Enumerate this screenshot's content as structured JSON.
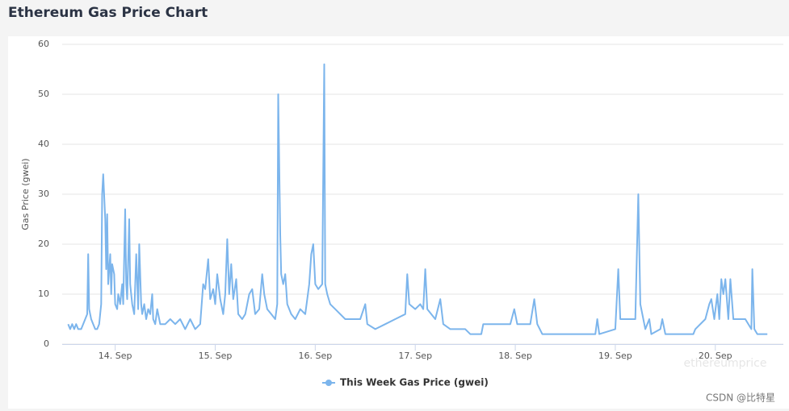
{
  "chart_data": {
    "type": "line",
    "title": "Ethereum Gas Price Chart",
    "y_label": "Gas Price (gwei)",
    "watermarks": [
      "ethereumprice",
      "CSDN @比特星"
    ],
    "x": [
      13.53,
      13.55,
      13.57,
      13.59,
      13.61,
      13.63,
      13.66,
      13.68,
      13.7,
      13.72,
      13.73,
      13.74,
      13.76,
      13.78,
      13.8,
      13.82,
      13.84,
      13.86,
      13.87,
      13.88,
      13.9,
      13.91,
      13.92,
      13.93,
      13.95,
      13.96,
      13.97,
      13.99,
      14.0,
      14.02,
      14.03,
      14.05,
      14.07,
      14.08,
      14.1,
      14.11,
      14.12,
      14.14,
      14.15,
      14.17,
      14.19,
      14.21,
      14.23,
      14.24,
      14.26,
      14.27,
      14.29,
      14.31,
      14.33,
      14.35,
      14.37,
      14.38,
      14.4,
      14.42,
      14.45,
      14.5,
      14.55,
      14.6,
      14.65,
      14.7,
      14.75,
      14.8,
      14.85,
      14.88,
      14.9,
      14.93,
      14.95,
      14.98,
      15.0,
      15.02,
      15.05,
      15.08,
      15.1,
      15.12,
      15.14,
      15.16,
      15.18,
      15.21,
      15.23,
      15.27,
      15.3,
      15.34,
      15.37,
      15.4,
      15.44,
      15.47,
      15.49,
      15.52,
      15.56,
      15.6,
      15.62,
      15.63,
      15.65,
      15.66,
      15.68,
      15.7,
      15.72,
      15.76,
      15.8,
      15.85,
      15.9,
      15.94,
      15.96,
      15.98,
      16.0,
      16.03,
      16.07,
      16.09,
      16.1,
      16.12,
      16.15,
      16.2,
      16.3,
      16.45,
      16.5,
      16.52,
      16.6,
      16.7,
      16.8,
      16.9,
      16.92,
      16.94,
      17.0,
      17.05,
      17.08,
      17.1,
      17.12,
      17.2,
      17.25,
      17.28,
      17.35,
      17.5,
      17.55,
      17.66,
      17.68,
      17.95,
      17.99,
      18.02,
      18.15,
      18.19,
      18.22,
      18.27,
      18.8,
      18.82,
      18.84,
      19.0,
      19.03,
      19.05,
      19.2,
      19.23,
      19.25,
      19.3,
      19.34,
      19.36,
      19.45,
      19.47,
      19.5,
      19.78,
      19.8,
      19.9,
      19.94,
      19.96,
      19.99,
      20.02,
      20.04,
      20.06,
      20.08,
      20.1,
      20.13,
      20.15,
      20.18,
      20.3,
      20.36,
      20.37,
      20.39,
      20.42,
      20.52
    ],
    "series": [
      {
        "name": "This Week Gas Price (gwei)",
        "color": "#7cb5ec",
        "values": [
          4,
          3,
          4,
          3,
          4,
          3,
          3,
          4,
          5,
          6,
          18,
          7,
          5,
          4,
          3,
          3,
          4,
          8,
          30,
          34,
          25,
          15,
          26,
          12,
          18,
          10,
          16,
          14,
          8,
          7,
          10,
          8,
          12,
          8,
          27,
          12,
          9,
          25,
          12,
          8,
          6,
          18,
          7,
          20,
          8,
          6,
          8,
          5,
          7,
          6,
          10,
          5,
          4,
          7,
          4,
          4,
          5,
          4,
          5,
          3,
          5,
          3,
          4,
          12,
          11,
          17,
          9,
          11,
          8,
          14,
          9,
          6,
          10,
          21,
          10,
          16,
          9,
          13,
          6,
          5,
          6,
          10,
          11,
          6,
          7,
          14,
          10,
          7,
          6,
          5,
          8,
          50,
          22,
          14,
          12,
          14,
          8,
          6,
          5,
          7,
          6,
          12,
          18,
          20,
          12,
          11,
          12,
          56,
          12,
          10,
          8,
          7,
          5,
          5,
          8,
          4,
          3,
          4,
          5,
          6,
          14,
          8,
          7,
          8,
          7,
          15,
          7,
          5,
          9,
          4,
          3,
          3,
          2,
          2,
          4,
          4,
          7,
          4,
          4,
          9,
          4,
          2,
          2,
          5,
          2,
          3,
          15,
          5,
          5,
          30,
          8,
          3,
          5,
          2,
          3,
          5,
          2,
          2,
          3,
          5,
          8,
          9,
          5,
          10,
          5,
          13,
          10,
          13,
          5,
          13,
          5,
          5,
          3,
          15,
          3,
          2,
          2
        ]
      }
    ],
    "xlim": [
      13.47,
      20.68
    ],
    "xticks": [
      {
        "value": 14,
        "label": "14. Sep"
      },
      {
        "value": 15,
        "label": "15. Sep"
      },
      {
        "value": 16,
        "label": "16. Sep"
      },
      {
        "value": 17,
        "label": "17. Sep"
      },
      {
        "value": 18,
        "label": "18. Sep"
      },
      {
        "value": 19,
        "label": "19. Sep"
      },
      {
        "value": 20,
        "label": "20. Sep"
      }
    ],
    "ylim": [
      0,
      60
    ],
    "yticks": [
      0,
      10,
      20,
      30,
      40,
      50,
      60
    ],
    "grid": true,
    "legend": "bottom"
  }
}
